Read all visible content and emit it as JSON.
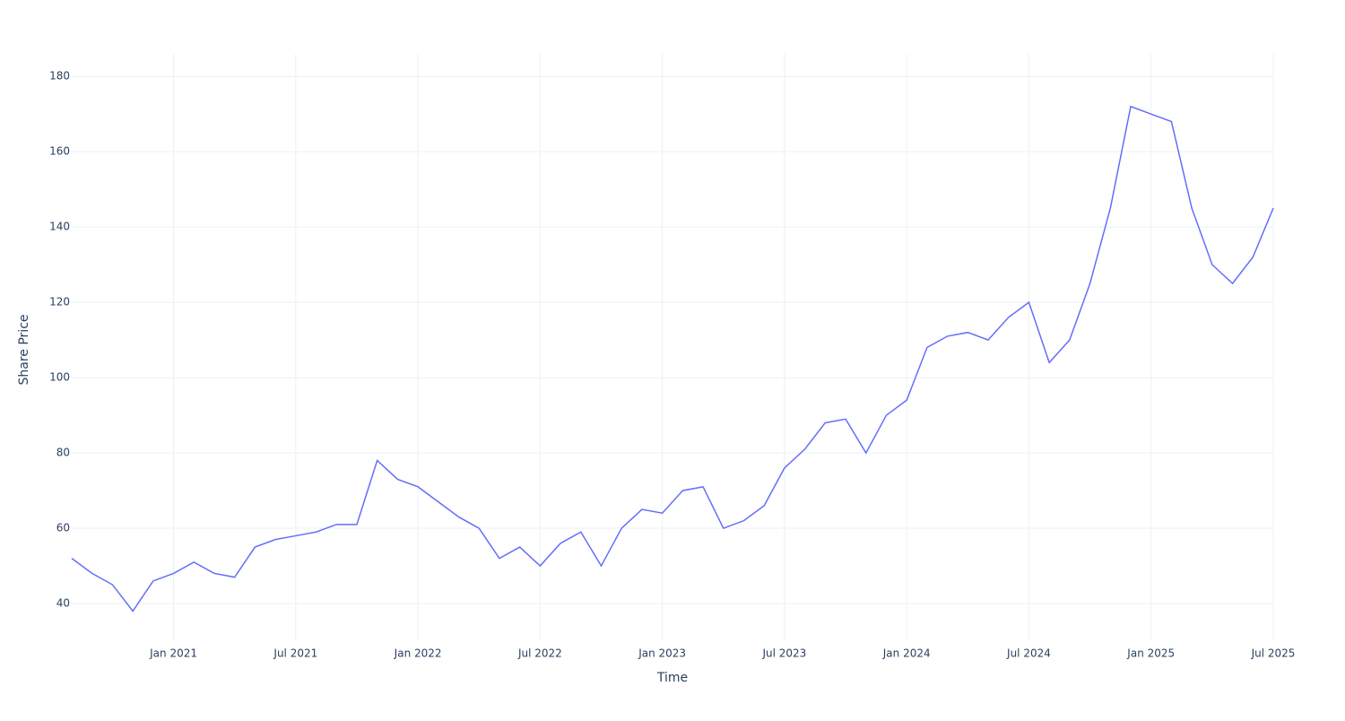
{
  "chart_data": {
    "type": "line",
    "x_label": "Time",
    "y_label": "Share Price",
    "x": [
      "2020-08",
      "2020-09",
      "2020-10",
      "2020-11",
      "2020-12",
      "2021-01",
      "2021-02",
      "2021-03",
      "2021-04",
      "2021-05",
      "2021-06",
      "2021-07",
      "2021-08",
      "2021-09",
      "2021-10",
      "2021-11",
      "2021-12",
      "2022-01",
      "2022-02",
      "2022-03",
      "2022-04",
      "2022-05",
      "2022-06",
      "2022-07",
      "2022-08",
      "2022-09",
      "2022-10",
      "2022-11",
      "2022-12",
      "2023-01",
      "2023-02",
      "2023-03",
      "2023-04",
      "2023-05",
      "2023-06",
      "2023-07",
      "2023-08",
      "2023-09",
      "2023-10",
      "2023-11",
      "2023-12",
      "2024-01",
      "2024-02",
      "2024-03",
      "2024-04",
      "2024-05",
      "2024-06",
      "2024-07",
      "2024-08",
      "2024-09",
      "2024-10",
      "2024-11",
      "2024-12",
      "2025-01",
      "2025-02",
      "2025-03",
      "2025-04",
      "2025-05",
      "2025-06",
      "2025-07"
    ],
    "series": [
      {
        "color": "#636efa",
        "values": [
          52,
          48,
          45,
          38,
          46,
          48,
          51,
          48,
          47,
          55,
          57,
          58,
          59,
          61,
          61,
          78,
          73,
          71,
          67,
          63,
          60,
          52,
          55,
          50,
          56,
          59,
          50,
          60,
          65,
          64,
          70,
          71,
          60,
          62,
          66,
          76,
          81,
          88,
          89,
          80,
          90,
          94,
          108,
          111,
          112,
          110,
          116,
          120,
          104,
          110,
          125,
          145,
          172,
          170,
          168,
          145,
          130,
          125,
          132,
          145
        ]
      }
    ],
    "xlim": [
      "2020-08",
      "2025-07"
    ],
    "xticks": [
      {
        "value": "2021-01",
        "label": "Jan 2021"
      },
      {
        "value": "2021-07",
        "label": "Jul 2021"
      },
      {
        "value": "2022-01",
        "label": "Jan 2022"
      },
      {
        "value": "2022-07",
        "label": "Jul 2022"
      },
      {
        "value": "2023-01",
        "label": "Jan 2023"
      },
      {
        "value": "2023-07",
        "label": "Jul 2023"
      },
      {
        "value": "2024-01",
        "label": "Jan 2024"
      },
      {
        "value": "2024-07",
        "label": "Jul 2024"
      },
      {
        "value": "2025-01",
        "label": "Jan 2025"
      },
      {
        "value": "2025-07",
        "label": "Jul 2025"
      }
    ],
    "ylim": [
      30,
      186
    ],
    "yticks": [
      40,
      60,
      80,
      100,
      120,
      140,
      160,
      180
    ],
    "grid": true
  }
}
